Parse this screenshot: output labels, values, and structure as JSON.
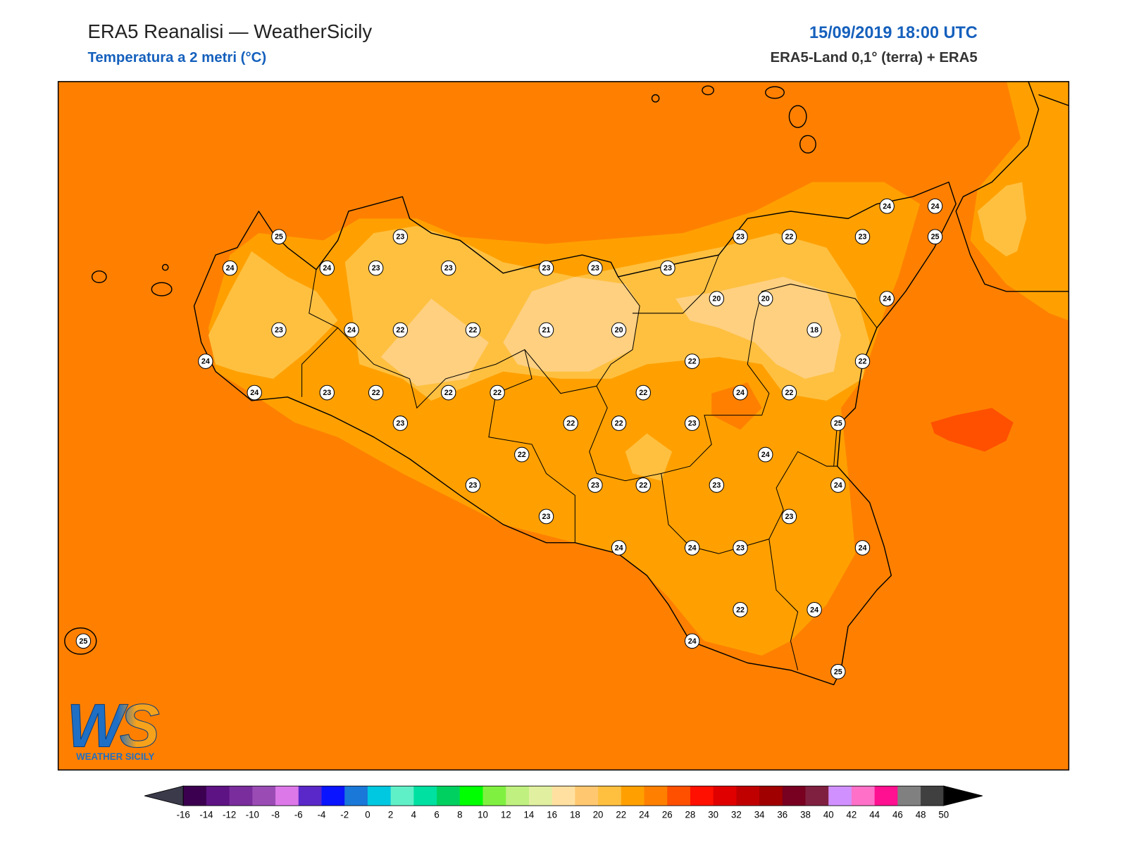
{
  "header": {
    "title": "ERA5 Reanalisi — WeatherSicily",
    "subtitle": "Temperatura a 2 metri (°C)",
    "datetime": "15/09/2019 18:00 UTC",
    "source": "ERA5-Land 0,1° (terra) + ERA5"
  },
  "stations": [
    25,
    23,
    24,
    24,
    23,
    23,
    23,
    23,
    23,
    23,
    22,
    23,
    24,
    24,
    25,
    20,
    20,
    24,
    23,
    24,
    22,
    22,
    21,
    20,
    18,
    24,
    22,
    22,
    24,
    23,
    22,
    22,
    22,
    22,
    24,
    22,
    23,
    22,
    22,
    23,
    25,
    24,
    22,
    23,
    23,
    22,
    23,
    24,
    23,
    23,
    24,
    24,
    23,
    24,
    22,
    24,
    24,
    25,
    25
  ],
  "colorbar": {
    "ticks": [
      -16,
      -14,
      -12,
      -10,
      -8,
      -6,
      -4,
      -2,
      0,
      2,
      4,
      6,
      8,
      10,
      12,
      14,
      16,
      18,
      20,
      22,
      24,
      26,
      28,
      30,
      32,
      34,
      36,
      38,
      40,
      42,
      44,
      46,
      48,
      50
    ],
    "colors": [
      "#3c0050",
      "#5e1384",
      "#7a2d9c",
      "#9a4cb4",
      "#dc78e8",
      "#5a28c8",
      "#0a14ff",
      "#1a78d8",
      "#00c8e0",
      "#60f0c8",
      "#00e0a0",
      "#00d060",
      "#00ff00",
      "#80f040",
      "#c0f080",
      "#e0f0a0",
      "#ffe0a0",
      "#ffc870",
      "#ffc040",
      "#ffa000",
      "#ff8000",
      "#ff5000",
      "#ff1000",
      "#e00000",
      "#c00000",
      "#a00000",
      "#780020",
      "#802040",
      "#d090ff",
      "#ff70c8",
      "#ff1090",
      "#808080",
      "#404040"
    ],
    "under": "#3a3a4a",
    "over": "#000000"
  },
  "logo": {
    "mark": "WS",
    "caption": "WEATHER SICILY"
  }
}
